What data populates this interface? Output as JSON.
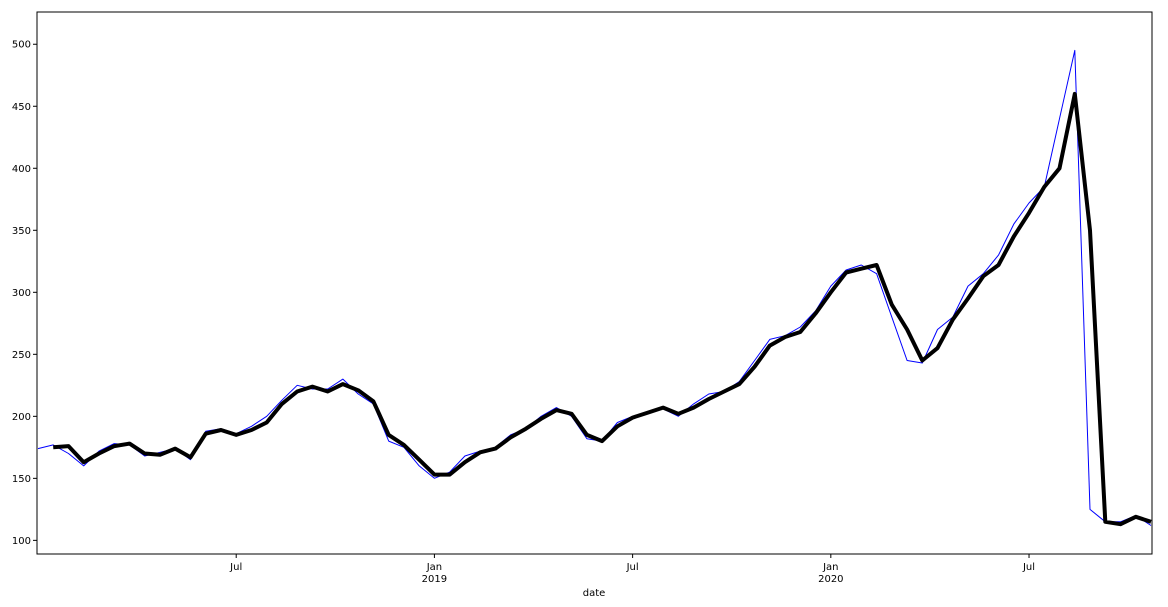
{
  "chart_data": {
    "type": "line",
    "x_label": "date",
    "categories": [
      null,
      null,
      null,
      null,
      null,
      null,
      null,
      null,
      null,
      null,
      null,
      null,
      null,
      "Jul",
      null,
      null,
      null,
      null,
      null,
      null,
      null,
      null,
      null,
      null,
      null,
      null,
      "Jan\n2019",
      null,
      null,
      null,
      null,
      null,
      null,
      null,
      null,
      null,
      null,
      null,
      null,
      "Jul",
      null,
      null,
      null,
      null,
      null,
      null,
      null,
      null,
      null,
      null,
      null,
      null,
      "Jan\n2020",
      null,
      null,
      null,
      null,
      null,
      null,
      null,
      null,
      null,
      null,
      null,
      null,
      "Jul",
      null,
      null,
      null,
      null,
      null,
      null,
      null,
      null
    ],
    "series": [
      {
        "color": "#0000ff",
        "width": 1,
        "values": [
          174,
          177,
          170,
          160,
          172,
          178,
          177,
          168,
          171,
          174,
          165,
          188,
          190,
          186,
          192,
          200,
          213,
          225,
          222,
          222,
          230,
          218,
          210,
          180,
          175,
          160,
          150,
          155,
          168,
          172,
          175,
          185,
          190,
          200,
          207,
          200,
          182,
          180,
          195,
          200,
          203,
          206,
          200,
          210,
          218,
          220,
          228,
          245,
          262,
          265,
          272,
          285,
          305,
          318,
          322,
          315,
          280,
          245,
          243,
          270,
          280,
          305,
          315,
          330,
          355,
          372,
          385,
          440,
          495,
          125,
          115,
          115,
          120,
          112
        ]
      },
      {
        "color": "#000000",
        "width": 4,
        "values": [
          null,
          175,
          176,
          163,
          170,
          176,
          178,
          170,
          169,
          174,
          167,
          186,
          189,
          185,
          189,
          195,
          210,
          220,
          224,
          220,
          226,
          221,
          212,
          185,
          177,
          165,
          153,
          153,
          163,
          171,
          174,
          183,
          190,
          198,
          205,
          202,
          185,
          180,
          192,
          199,
          203,
          207,
          202,
          207,
          214,
          220,
          226,
          240,
          257,
          264,
          268,
          283,
          300,
          316,
          319,
          322,
          290,
          270,
          245,
          255,
          278,
          295,
          313,
          322,
          345,
          364,
          385,
          400,
          460,
          350,
          115,
          113,
          119,
          115
        ]
      }
    ],
    "ylim": [
      89,
      526
    ],
    "yticks": [
      100,
      150,
      200,
      250,
      300,
      350,
      400,
      450,
      500
    ]
  }
}
